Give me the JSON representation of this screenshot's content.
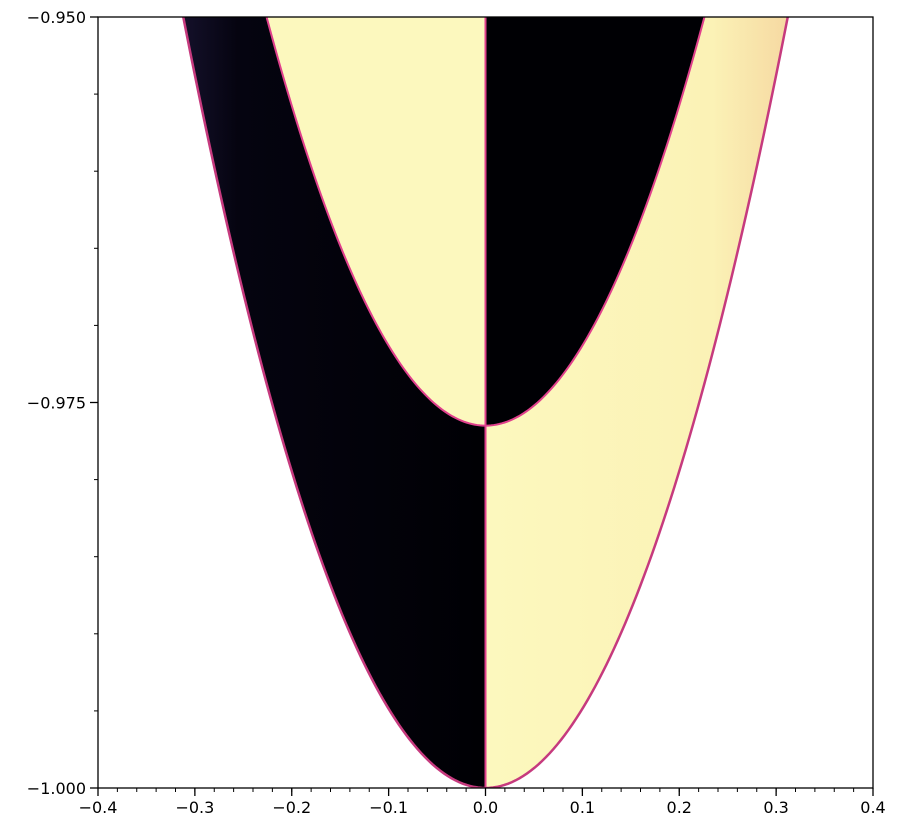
{
  "chart_data": {
    "type": "heatmap",
    "title": "",
    "xlabel": "",
    "ylabel": "",
    "xlim": [
      -0.4,
      0.4
    ],
    "ylim": [
      -1.0,
      -0.95
    ],
    "x_ticks": [
      {
        "value": -0.4,
        "label": "−0.4"
      },
      {
        "value": -0.3,
        "label": "−0.3"
      },
      {
        "value": -0.2,
        "label": "−0.2"
      },
      {
        "value": -0.1,
        "label": "−0.1"
      },
      {
        "value": 0.0,
        "label": "0.0"
      },
      {
        "value": 0.1,
        "label": "0.1"
      },
      {
        "value": 0.2,
        "label": "0.2"
      },
      {
        "value": 0.3,
        "label": "0.3"
      },
      {
        "value": 0.4,
        "label": "0.4"
      }
    ],
    "y_ticks": [
      {
        "value": -1.0,
        "label": "−1.000"
      },
      {
        "value": -0.975,
        "label": "−0.975"
      },
      {
        "value": -0.95,
        "label": "−0.950"
      }
    ],
    "x_minor_step": 0.02,
    "y_minor_step": 0.005,
    "colormap": "magma",
    "colors": {
      "low": "#000004",
      "high": "#fcfdbf",
      "boundary": "#e0408c"
    },
    "regions": {
      "outer_parabola": {
        "vertex_y": -1.0,
        "edge_x": 0.312,
        "edge_y": -0.95
      },
      "inner_parabola": {
        "vertex_y": -0.9765,
        "edge_x": 0.226,
        "edge_y": -0.95
      },
      "divider_x": 0.0
    },
    "grid": false,
    "legend": "none"
  }
}
